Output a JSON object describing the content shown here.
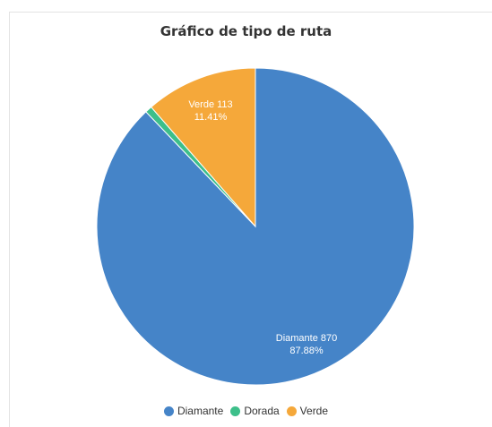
{
  "chart_data": {
    "type": "pie",
    "title": "Gráfico de tipo de ruta",
    "legend_position": "bottom",
    "slices": [
      {
        "name": "Diamante",
        "value": 870,
        "percent": "87.88%",
        "color": "#4584c8"
      },
      {
        "name": "Dorada",
        "value": 7,
        "percent": "0.71%",
        "color": "#3dbf8a"
      },
      {
        "name": "Verde",
        "value": 113,
        "percent": "11.41%",
        "color": "#f5a83a"
      }
    ],
    "legend": [
      "Diamante",
      "Dorada",
      "Verde"
    ]
  }
}
